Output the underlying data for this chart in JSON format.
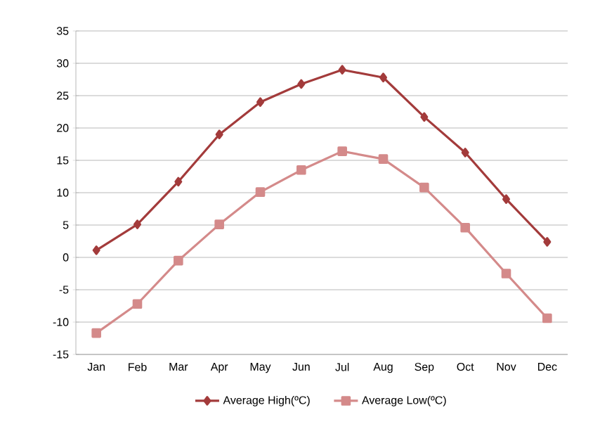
{
  "chart_data": {
    "type": "line",
    "categories": [
      "Jan",
      "Feb",
      "Mar",
      "Apr",
      "May",
      "Jun",
      "Jul",
      "Aug",
      "Sep",
      "Oct",
      "Nov",
      "Dec"
    ],
    "series": [
      {
        "name": "Average High(ºC)",
        "color": "#a33b3b",
        "marker": "diamond",
        "values": [
          1.1,
          5.1,
          11.7,
          19.0,
          24.0,
          26.8,
          29.0,
          27.8,
          21.7,
          16.2,
          9.0,
          2.4
        ]
      },
      {
        "name": "Average Low(ºC)",
        "color": "#d48a8a",
        "marker": "square",
        "values": [
          -11.7,
          -7.2,
          -0.5,
          5.1,
          10.1,
          13.5,
          16.4,
          15.2,
          10.8,
          4.6,
          -2.5,
          -9.4
        ]
      }
    ],
    "ylim": [
      -15,
      35
    ],
    "yticks": [
      -15,
      -10,
      -5,
      0,
      5,
      10,
      15,
      20,
      25,
      30,
      35
    ],
    "grid": "y",
    "legend": "bottom",
    "line_style": "solid"
  }
}
